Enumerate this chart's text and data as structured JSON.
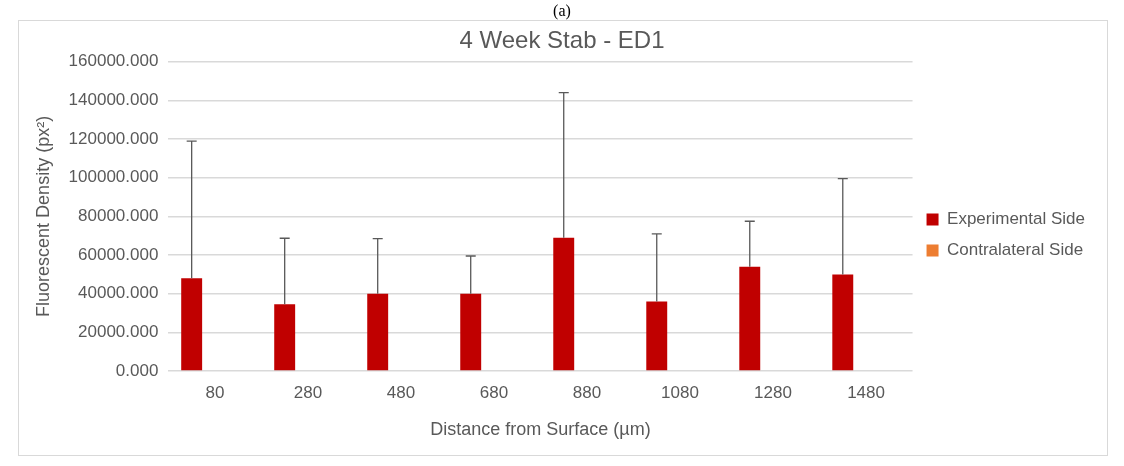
{
  "chart_data": {
    "type": "bar",
    "title": "4 Week Stab - ED1",
    "xlabel": "Distance from Surface (µm)",
    "ylabel": "Fluorescent Density (px²)",
    "annotations": [
      "(a)"
    ],
    "categories": [
      "80",
      "280",
      "480",
      "680",
      "880",
      "1080",
      "1280",
      "1480"
    ],
    "series": [
      {
        "name": "Experimental Side",
        "color": "#c00000",
        "values": [
          48000,
          34500,
          40000,
          40000,
          69000,
          36000,
          54000,
          50000
        ],
        "errors": [
          [
            48000,
            119000
          ],
          [
            34500,
            68700
          ],
          [
            40000,
            68500
          ],
          [
            40000,
            59500
          ],
          [
            69000,
            144000
          ],
          [
            36000,
            71000
          ],
          [
            54000,
            77500
          ],
          [
            50000,
            99500
          ]
        ]
      },
      {
        "name": "Contralateral Side",
        "color": "#ed7d31",
        "values": [
          null,
          null,
          null,
          null,
          null,
          null,
          null,
          null
        ]
      }
    ],
    "ylim": [
      0,
      160000
    ],
    "yticks": [
      {
        "value": 0,
        "label": "0.000"
      },
      {
        "value": 20000,
        "label": "20000.000"
      },
      {
        "value": 40000,
        "label": "40000.000"
      },
      {
        "value": 60000,
        "label": "60000.000"
      },
      {
        "value": 80000,
        "label": "80000.000"
      },
      {
        "value": 100000,
        "label": "100000.000"
      },
      {
        "value": 120000,
        "label": "120000.000"
      },
      {
        "value": 140000,
        "label": "140000.000"
      },
      {
        "value": 160000,
        "label": "160000.000"
      }
    ],
    "grid": "y",
    "legend": "right"
  }
}
